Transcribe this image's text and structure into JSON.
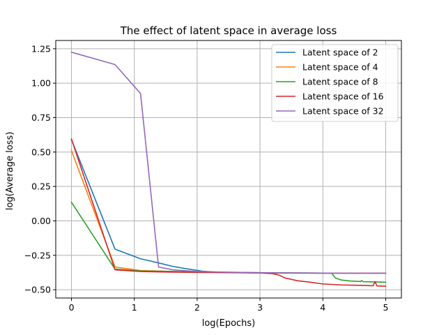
{
  "chart_data": {
    "type": "line",
    "title": "The effect of latent space in average loss",
    "xlabel": "log(Epochs)",
    "ylabel": "log(Average loss)",
    "xlim": [
      -0.25,
      5.25
    ],
    "ylim": [
      -0.56,
      1.31
    ],
    "xticks": [
      0,
      1,
      2,
      3,
      4,
      5
    ],
    "yticks": [
      -0.5,
      -0.25,
      0.0,
      0.25,
      0.5,
      0.75,
      1.0,
      1.25
    ],
    "ytick_labels": [
      "−0.50",
      "−0.25",
      "0.00",
      "0.25",
      "0.50",
      "0.75",
      "1.00",
      "1.25"
    ],
    "grid": true,
    "legend_position": "top-right",
    "series": [
      {
        "name": "Latent space of 2",
        "color": "#1f77b4",
        "points": [
          [
            0,
            0.59
          ],
          [
            0.693,
            -0.205
          ],
          [
            1.099,
            -0.275
          ],
          [
            1.386,
            -0.305
          ],
          [
            1.609,
            -0.33
          ],
          [
            1.792,
            -0.345
          ],
          [
            2.079,
            -0.365
          ],
          [
            2.303,
            -0.372
          ],
          [
            2.708,
            -0.376
          ],
          [
            3.0,
            -0.378
          ],
          [
            3.4,
            -0.379
          ],
          [
            4.0,
            -0.38
          ],
          [
            4.5,
            -0.38
          ],
          [
            5.0,
            -0.38
          ]
        ]
      },
      {
        "name": "Latent space of 4",
        "color": "#ff7f0e",
        "points": [
          [
            0,
            0.51
          ],
          [
            0.693,
            -0.335
          ],
          [
            1.099,
            -0.36
          ],
          [
            1.386,
            -0.364
          ],
          [
            1.609,
            -0.367
          ],
          [
            2.0,
            -0.37
          ],
          [
            2.5,
            -0.373
          ],
          [
            3.0,
            -0.376
          ],
          [
            3.5,
            -0.378
          ],
          [
            4.0,
            -0.379
          ],
          [
            4.5,
            -0.38
          ],
          [
            5.0,
            -0.38
          ]
        ]
      },
      {
        "name": "Latent space of 8",
        "color": "#2ca02c",
        "points": [
          [
            0,
            0.135
          ],
          [
            0.693,
            -0.35
          ],
          [
            1.099,
            -0.364
          ],
          [
            1.609,
            -0.368
          ],
          [
            2.0,
            -0.371
          ],
          [
            2.5,
            -0.374
          ],
          [
            3.0,
            -0.377
          ],
          [
            3.5,
            -0.378
          ],
          [
            4.0,
            -0.379
          ],
          [
            4.14,
            -0.38
          ],
          [
            4.2,
            -0.415
          ],
          [
            4.3,
            -0.43
          ],
          [
            4.45,
            -0.437
          ],
          [
            4.6,
            -0.44
          ],
          [
            4.62,
            -0.433
          ],
          [
            4.64,
            -0.441
          ],
          [
            4.8,
            -0.443
          ],
          [
            5.0,
            -0.445
          ]
        ]
      },
      {
        "name": "Latent space of 16",
        "color": "#d62728",
        "points": [
          [
            0,
            0.595
          ],
          [
            0.693,
            -0.355
          ],
          [
            1.099,
            -0.368
          ],
          [
            1.609,
            -0.372
          ],
          [
            2.0,
            -0.374
          ],
          [
            2.5,
            -0.376
          ],
          [
            3.0,
            -0.378
          ],
          [
            3.2,
            -0.383
          ],
          [
            3.3,
            -0.393
          ],
          [
            3.4,
            -0.415
          ],
          [
            3.6,
            -0.435
          ],
          [
            3.8,
            -0.445
          ],
          [
            4.0,
            -0.458
          ],
          [
            4.3,
            -0.465
          ],
          [
            4.6,
            -0.468
          ],
          [
            4.8,
            -0.471
          ],
          [
            4.83,
            -0.44
          ],
          [
            4.86,
            -0.472
          ],
          [
            5.0,
            -0.474
          ]
        ]
      },
      {
        "name": "Latent space of 32",
        "color": "#9467bd",
        "points": [
          [
            0,
            1.225
          ],
          [
            0.693,
            1.135
          ],
          [
            1.099,
            0.925
          ],
          [
            1.386,
            -0.335
          ],
          [
            1.609,
            -0.355
          ],
          [
            2.0,
            -0.368
          ],
          [
            2.5,
            -0.373
          ],
          [
            3.0,
            -0.376
          ],
          [
            3.5,
            -0.378
          ],
          [
            4.0,
            -0.379
          ],
          [
            4.5,
            -0.38
          ],
          [
            5.0,
            -0.38
          ]
        ]
      }
    ]
  }
}
